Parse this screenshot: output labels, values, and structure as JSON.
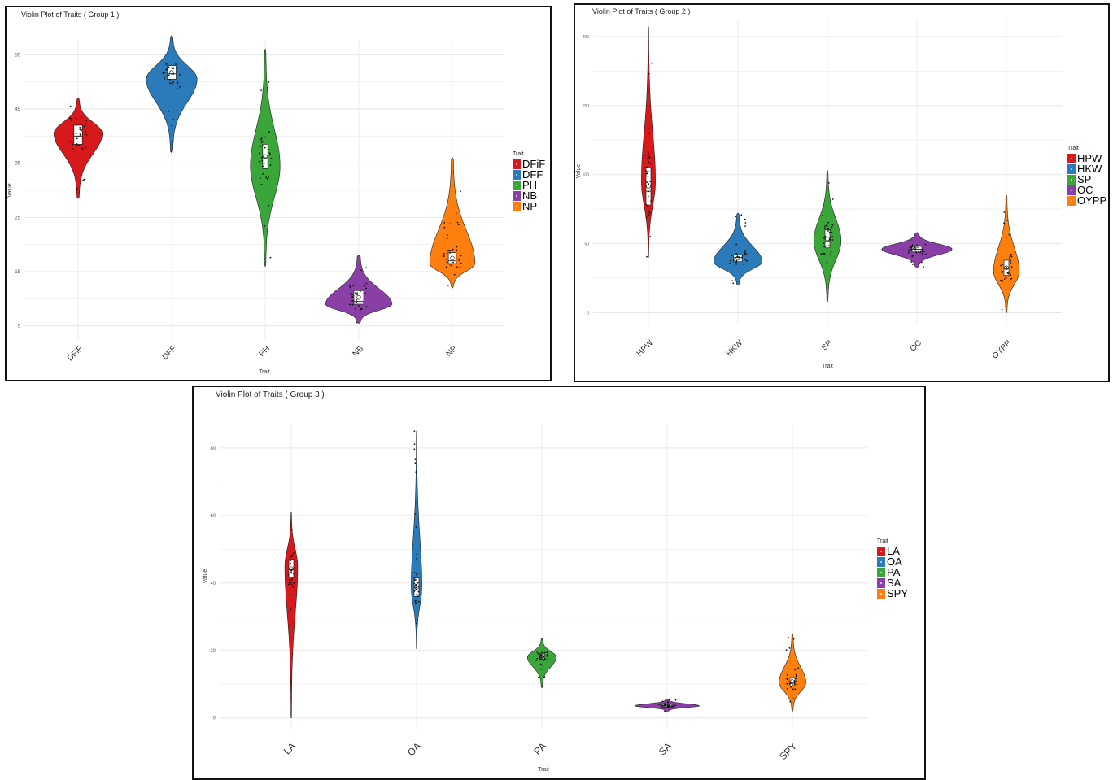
{
  "colors": {
    "red": "#d7191c",
    "blue": "#2b7bba",
    "green": "#3aa63a",
    "purple": "#8a3fa7",
    "orange": "#ff7f0e"
  },
  "chart_data": [
    {
      "type": "violin",
      "title": "Violin Plot of Traits ( Group 1 )",
      "xlabel": "Trait",
      "ylabel": "Value",
      "categories": [
        "DFiF",
        "DFF",
        "PH",
        "NB",
        "NP"
      ],
      "yticks": [
        5,
        15,
        25,
        35,
        45,
        55
      ],
      "ytick_labels": [
        "5",
        "15",
        "25",
        "35",
        "45",
        "55"
      ],
      "ylim": [
        3,
        57
      ],
      "legend_title": "Trait",
      "legend_position": "right",
      "grid": true,
      "series": [
        {
          "name": "DFiF",
          "color": "#d7191c",
          "median": 40,
          "q1": 38.5,
          "q3": 42,
          "min": 28.5,
          "max": 47,
          "peak": 40.5,
          "halfwidth": 0.62
        },
        {
          "name": "DFF",
          "color": "#2b7bba",
          "median": 51.5,
          "q1": 50.5,
          "q3": 53,
          "min": 37,
          "max": 58.5,
          "peak": 50.5,
          "halfwidth": 0.65
        },
        {
          "name": "PH",
          "color": "#3aa63a",
          "median": 36,
          "q1": 34,
          "q3": 38.5,
          "min": 16,
          "max": 56,
          "peak": 34.5,
          "halfwidth": 0.38
        },
        {
          "name": "NB",
          "color": "#8a3fa7",
          "median": 9.5,
          "q1": 9,
          "q3": 11.5,
          "min": 5.5,
          "max": 18,
          "peak": 9,
          "halfwidth": 0.85
        },
        {
          "name": "NP",
          "color": "#ff7f0e",
          "median": 17,
          "q1": 16.5,
          "q3": 18.5,
          "min": 12,
          "max": 36,
          "peak": 16.5,
          "halfwidth": 0.58
        }
      ]
    },
    {
      "type": "violin",
      "title": "Violin Plot of Traits ( Group 2 )",
      "xlabel": "Trait",
      "ylabel": "Value",
      "categories": [
        "HPW",
        "HKW",
        "SP",
        "OC",
        "OYPP"
      ],
      "yticks": [
        0,
        50,
        100,
        150,
        200
      ],
      "ytick_labels": [
        "0",
        "50",
        "100",
        "150",
        "200"
      ],
      "ylim": [
        -5,
        210
      ],
      "legend_title": "Trait",
      "legend_position": "right",
      "grid": true,
      "series": [
        {
          "name": "HPW",
          "color": "#d7191c",
          "median": 88,
          "q1": 78,
          "q3": 105,
          "min": 40,
          "max": 207,
          "peak": 95,
          "halfwidth": 0.18
        },
        {
          "name": "HKW",
          "color": "#2b7bba",
          "median": 40,
          "q1": 37,
          "q3": 42,
          "min": 20,
          "max": 72,
          "peak": 37,
          "halfwidth": 0.62
        },
        {
          "name": "SP",
          "color": "#3aa63a",
          "median": 52,
          "q1": 47,
          "q3": 60,
          "min": 8,
          "max": 103,
          "peak": 52,
          "halfwidth": 0.35
        },
        {
          "name": "OC",
          "color": "#8a3fa7",
          "median": 46,
          "q1": 44,
          "q3": 48,
          "min": 33,
          "max": 58,
          "peak": 46,
          "halfwidth": 0.9
        },
        {
          "name": "OYPP",
          "color": "#ff7f0e",
          "median": 32,
          "q1": 27,
          "q3": 38,
          "min": 0,
          "max": 85,
          "peak": 30,
          "halfwidth": 0.33
        }
      ]
    },
    {
      "type": "violin",
      "title": "Violin Plot of Traits ( Group 3 )",
      "xlabel": "Trait",
      "ylabel": "Value",
      "categories": [
        "LA",
        "OA",
        "PA",
        "SA",
        "SPY"
      ],
      "yticks": [
        0,
        20,
        40,
        60,
        80
      ],
      "ytick_labels": [
        "0",
        "20",
        "40",
        "60",
        "80"
      ],
      "ylim": [
        -2,
        86
      ],
      "legend_title": "Trait",
      "legend_position": "right",
      "grid": true,
      "series": [
        {
          "name": "LA",
          "color": "#d7191c",
          "median": 44,
          "q1": 41.5,
          "q3": 47,
          "min": 0,
          "max": 61,
          "peak": 45,
          "halfwidth": 0.12
        },
        {
          "name": "OA",
          "color": "#2b7bba",
          "median": 39,
          "q1": 36,
          "q3": 41.5,
          "min": 20.5,
          "max": 85,
          "peak": 39,
          "halfwidth": 0.1
        },
        {
          "name": "PA",
          "color": "#3aa63a",
          "median": 18,
          "q1": 17.5,
          "q3": 19,
          "min": 9,
          "max": 23.5,
          "peak": 18,
          "halfwidth": 0.27
        },
        {
          "name": "SA",
          "color": "#8a3fa7",
          "median": 3.5,
          "q1": 3.2,
          "q3": 4,
          "min": 2,
          "max": 5.5,
          "peak": 3.6,
          "halfwidth": 0.6
        },
        {
          "name": "SPY",
          "color": "#ff7f0e",
          "median": 10.5,
          "q1": 9.5,
          "q3": 12,
          "min": 2,
          "max": 25,
          "peak": 10.5,
          "halfwidth": 0.25
        }
      ]
    }
  ]
}
